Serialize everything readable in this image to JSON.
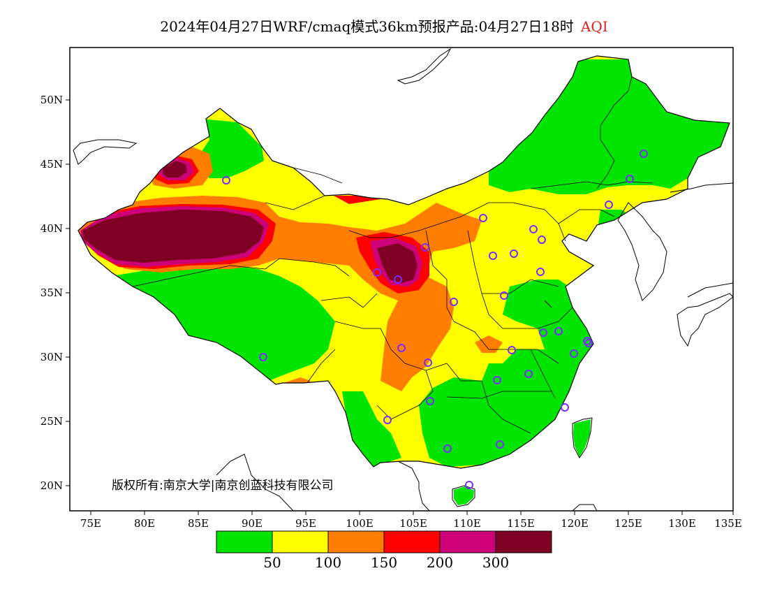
{
  "title": {
    "main": "2024年04月27日WRF/cmaq模式36km预报产品:04月27日18时",
    "variable": "AQI"
  },
  "copyright": "版权所有:南京大学|南京创蓝科技有限公司",
  "lat_ticks": [
    "20N",
    "25N",
    "30N",
    "35N",
    "40N",
    "45N",
    "50N"
  ],
  "lon_ticks": [
    "75E",
    "80E",
    "85E",
    "90E",
    "95E",
    "100E",
    "105E",
    "110E",
    "115E",
    "120E",
    "125E",
    "130E",
    "135E"
  ],
  "colorbar": {
    "colors": [
      "#00e400",
      "#ffff00",
      "#ff7e00",
      "#ff0000",
      "#cc0077",
      "#7e0023"
    ],
    "labels": [
      "50",
      "100",
      "150",
      "200",
      "300"
    ]
  },
  "legend_colors": {
    "good": "#00e400",
    "moderate": "#ffff00",
    "sensitive": "#ff7e00",
    "unhealthy": "#ff0000",
    "very_unhealthy": "#cc0077",
    "hazardous": "#7e0023",
    "station_marker": "#7a2cff"
  }
}
